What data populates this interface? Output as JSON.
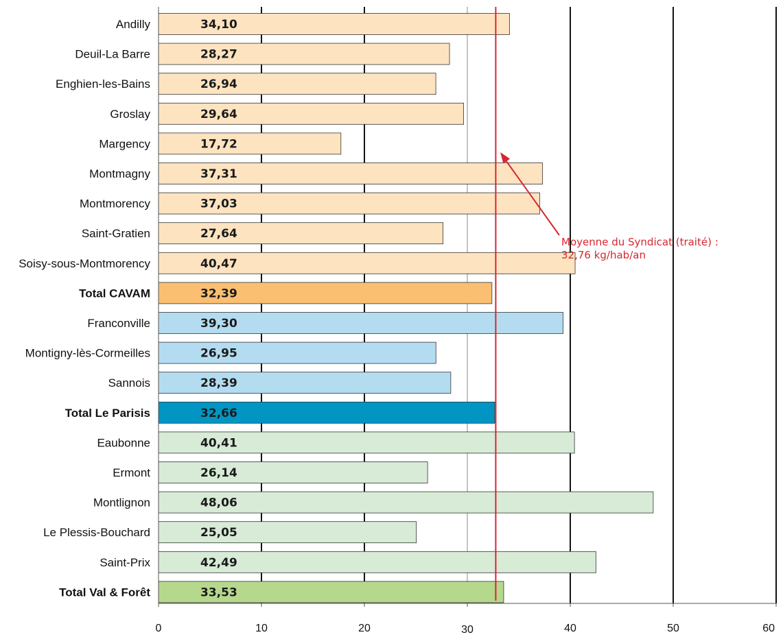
{
  "chart_data": {
    "type": "bar",
    "orientation": "horizontal",
    "categories": [
      "Andilly",
      "Deuil-La Barre",
      "Enghien-les-Bains",
      "Groslay",
      "Margency",
      "Montmagny",
      "Montmorency",
      "Saint-Gratien",
      "Soisy-sous-Montmorency",
      "Total CAVAM",
      "Franconville",
      "Montigny-lès-Cormeilles",
      "Sannois",
      "Total Le Parisis",
      "Eaubonne",
      "Ermont",
      "Montlignon",
      "Le Plessis-Bouchard",
      "Saint-Prix",
      "Total Val & Forêt"
    ],
    "values": [
      34.1,
      28.27,
      26.94,
      29.64,
      17.72,
      37.31,
      37.03,
      27.64,
      40.47,
      32.39,
      39.3,
      26.95,
      28.39,
      32.66,
      40.41,
      26.14,
      48.06,
      25.05,
      42.49,
      33.53
    ],
    "value_labels": [
      "34,10",
      "28,27",
      "26,94",
      "29,64",
      "17,72",
      "37,31",
      "37,03",
      "27,64",
      "40,47",
      "32,39",
      "39,30",
      "26,95",
      "28,39",
      "32,66",
      "40,41",
      "26,14",
      "48,06",
      "25,05",
      "42,49",
      "33,53"
    ],
    "totals": [
      "Total CAVAM",
      "Total Le Parisis",
      "Total Val & Forêt"
    ],
    "bar_colors": [
      "#fde3c0",
      "#fde3c0",
      "#fde3c0",
      "#fde3c0",
      "#fde3c0",
      "#fde3c0",
      "#fde3c0",
      "#fde3c0",
      "#fde3c0",
      "#fbbf71",
      "#b4dcf0",
      "#b4dcf0",
      "#b4dcf0",
      "#0095c2",
      "#d7ebd6",
      "#d7ebd6",
      "#d7ebd6",
      "#d7ebd6",
      "#d7ebd6",
      "#b5d88d"
    ],
    "x_ticks": [
      0,
      10,
      20,
      30,
      40,
      50,
      60
    ],
    "xlim": [
      0,
      60
    ],
    "grid": true,
    "title": "",
    "xlabel": "",
    "ylabel": "",
    "reference_line": {
      "value": 32.76,
      "color": "#d7262e",
      "label_line1": "Moyenne du Syndicat (traité) :",
      "label_line2": "32,76 kg/hab/an"
    }
  }
}
